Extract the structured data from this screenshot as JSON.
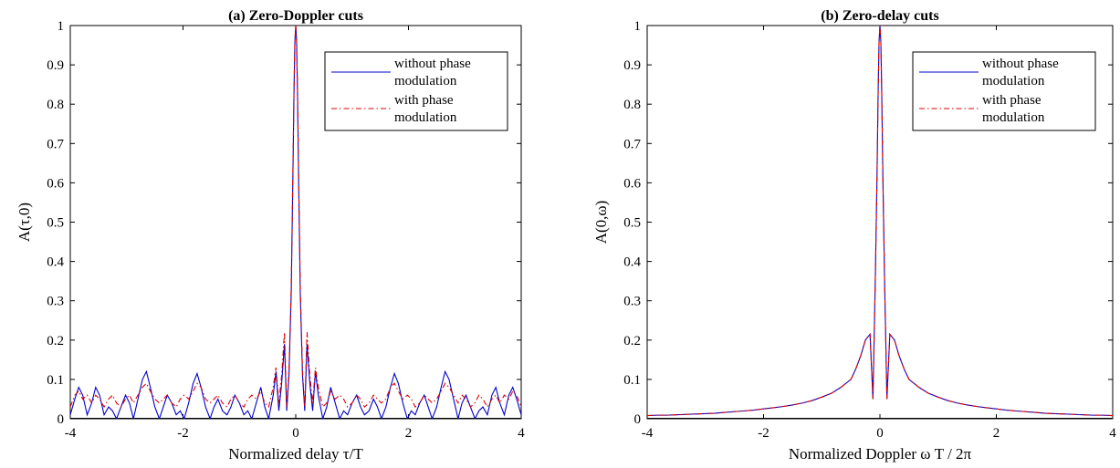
{
  "colors": {
    "without": "#0000cc",
    "with": "#dd0000"
  },
  "chart_data": [
    {
      "type": "line",
      "title": "(a) Zero-Doppler cuts",
      "xlabel": "Normalized delay τ/T",
      "ylabel": "A(τ,0)",
      "xlim": [
        -4,
        4
      ],
      "ylim": [
        0,
        1
      ],
      "xticks": [
        "-4",
        "-2",
        "0",
        "2",
        "4"
      ],
      "yticks": [
        "0",
        "0.1",
        "0.2",
        "0.3",
        "0.4",
        "0.5",
        "0.6",
        "0.7",
        "0.8",
        "0.9",
        "1"
      ],
      "grid": false,
      "legend_position": "top-right",
      "series": [
        {
          "name_lines": [
            "without phase",
            "modulation"
          ],
          "style": "solid",
          "color": "#0000cc",
          "x": [
            -4.0,
            -3.92,
            -3.85,
            -3.78,
            -3.7,
            -3.62,
            -3.55,
            -3.48,
            -3.4,
            -3.32,
            -3.25,
            -3.18,
            -3.1,
            -3.02,
            -2.95,
            -2.88,
            -2.8,
            -2.72,
            -2.65,
            -2.58,
            -2.5,
            -2.42,
            -2.35,
            -2.28,
            -2.2,
            -2.12,
            -2.05,
            -1.98,
            -1.9,
            -1.82,
            -1.75,
            -1.68,
            -1.6,
            -1.52,
            -1.45,
            -1.38,
            -1.3,
            -1.22,
            -1.15,
            -1.08,
            -1.0,
            -0.92,
            -0.85,
            -0.78,
            -0.7,
            -0.62,
            -0.55,
            -0.48,
            -0.4,
            -0.35,
            -0.3,
            -0.25,
            -0.2,
            -0.16,
            -0.12,
            -0.08,
            -0.05,
            -0.03,
            -0.015,
            0.0,
            0.015,
            0.03,
            0.05,
            0.08,
            0.12,
            0.16,
            0.2,
            0.25,
            0.3,
            0.35,
            0.4,
            0.48,
            0.55,
            0.62,
            0.7,
            0.78,
            0.85,
            0.92,
            1.0,
            1.08,
            1.15,
            1.22,
            1.3,
            1.38,
            1.45,
            1.52,
            1.6,
            1.68,
            1.75,
            1.82,
            1.9,
            1.98,
            2.05,
            2.12,
            2.2,
            2.28,
            2.35,
            2.42,
            2.5,
            2.58,
            2.65,
            2.72,
            2.8,
            2.88,
            2.95,
            3.02,
            3.1,
            3.18,
            3.25,
            3.32,
            3.4,
            3.48,
            3.55,
            3.62,
            3.7,
            3.78,
            3.85,
            3.92,
            4.0
          ],
          "y": [
            0.01,
            0.05,
            0.08,
            0.06,
            0.01,
            0.04,
            0.08,
            0.06,
            0.01,
            0.03,
            0.02,
            0.0,
            0.03,
            0.06,
            0.04,
            0.0,
            0.05,
            0.1,
            0.12,
            0.08,
            0.03,
            0.0,
            0.03,
            0.06,
            0.04,
            0.01,
            0.02,
            0.0,
            0.04,
            0.09,
            0.115,
            0.08,
            0.03,
            0.0,
            0.03,
            0.05,
            0.02,
            0.01,
            0.03,
            0.06,
            0.04,
            0.01,
            0.02,
            0.0,
            0.04,
            0.08,
            0.03,
            0.0,
            0.06,
            0.12,
            0.02,
            0.09,
            0.19,
            0.02,
            0.11,
            0.32,
            0.62,
            0.84,
            0.96,
            1.0,
            0.96,
            0.84,
            0.62,
            0.32,
            0.11,
            0.02,
            0.19,
            0.09,
            0.02,
            0.12,
            0.06,
            0.0,
            0.03,
            0.08,
            0.04,
            0.0,
            0.02,
            0.01,
            0.04,
            0.06,
            0.03,
            0.01,
            0.02,
            0.05,
            0.03,
            0.0,
            0.03,
            0.08,
            0.115,
            0.09,
            0.04,
            0.0,
            0.02,
            0.01,
            0.04,
            0.06,
            0.03,
            0.0,
            0.03,
            0.08,
            0.12,
            0.1,
            0.05,
            0.0,
            0.04,
            0.06,
            0.03,
            0.0,
            0.02,
            0.03,
            0.01,
            0.06,
            0.08,
            0.04,
            0.01,
            0.06,
            0.08,
            0.05,
            0.01
          ]
        },
        {
          "name_lines": [
            "with phase",
            "modulation"
          ],
          "style": "dashdot",
          "color": "#dd0000",
          "x": [
            -4.0,
            -3.92,
            -3.85,
            -3.78,
            -3.7,
            -3.62,
            -3.55,
            -3.48,
            -3.4,
            -3.32,
            -3.25,
            -3.18,
            -3.1,
            -3.02,
            -2.95,
            -2.88,
            -2.8,
            -2.72,
            -2.65,
            -2.58,
            -2.5,
            -2.42,
            -2.35,
            -2.28,
            -2.2,
            -2.12,
            -2.05,
            -1.98,
            -1.9,
            -1.82,
            -1.75,
            -1.68,
            -1.6,
            -1.52,
            -1.45,
            -1.38,
            -1.3,
            -1.22,
            -1.15,
            -1.08,
            -1.0,
            -0.92,
            -0.85,
            -0.78,
            -0.7,
            -0.62,
            -0.55,
            -0.48,
            -0.4,
            -0.35,
            -0.3,
            -0.25,
            -0.2,
            -0.16,
            -0.12,
            -0.08,
            -0.05,
            -0.03,
            -0.015,
            0.0,
            0.015,
            0.03,
            0.05,
            0.08,
            0.12,
            0.16,
            0.2,
            0.25,
            0.3,
            0.35,
            0.4,
            0.48,
            0.55,
            0.62,
            0.7,
            0.78,
            0.85,
            0.92,
            1.0,
            1.08,
            1.15,
            1.22,
            1.3,
            1.38,
            1.45,
            1.52,
            1.6,
            1.68,
            1.75,
            1.82,
            1.9,
            1.98,
            2.05,
            2.12,
            2.2,
            2.28,
            2.35,
            2.42,
            2.5,
            2.58,
            2.65,
            2.72,
            2.8,
            2.88,
            2.95,
            3.02,
            3.1,
            3.18,
            3.25,
            3.32,
            3.4,
            3.48,
            3.55,
            3.62,
            3.7,
            3.78,
            3.85,
            3.92,
            4.0
          ],
          "y": [
            0.03,
            0.06,
            0.07,
            0.05,
            0.06,
            0.04,
            0.06,
            0.05,
            0.03,
            0.05,
            0.06,
            0.04,
            0.03,
            0.05,
            0.06,
            0.04,
            0.06,
            0.08,
            0.09,
            0.07,
            0.05,
            0.04,
            0.05,
            0.06,
            0.04,
            0.03,
            0.05,
            0.06,
            0.05,
            0.07,
            0.09,
            0.08,
            0.05,
            0.04,
            0.05,
            0.06,
            0.04,
            0.03,
            0.05,
            0.06,
            0.04,
            0.03,
            0.05,
            0.06,
            0.05,
            0.07,
            0.04,
            0.03,
            0.08,
            0.13,
            0.04,
            0.11,
            0.22,
            0.03,
            0.12,
            0.34,
            0.64,
            0.85,
            0.96,
            1.0,
            0.96,
            0.85,
            0.64,
            0.34,
            0.12,
            0.03,
            0.22,
            0.11,
            0.04,
            0.13,
            0.08,
            0.03,
            0.04,
            0.07,
            0.05,
            0.06,
            0.05,
            0.03,
            0.04,
            0.06,
            0.05,
            0.03,
            0.04,
            0.06,
            0.05,
            0.04,
            0.05,
            0.08,
            0.09,
            0.07,
            0.05,
            0.06,
            0.05,
            0.03,
            0.04,
            0.06,
            0.05,
            0.04,
            0.05,
            0.07,
            0.09,
            0.08,
            0.06,
            0.04,
            0.06,
            0.05,
            0.03,
            0.04,
            0.06,
            0.05,
            0.03,
            0.05,
            0.06,
            0.04,
            0.06,
            0.05,
            0.07,
            0.06,
            0.03
          ]
        }
      ]
    },
    {
      "type": "line",
      "title": "(b) Zero-delay cuts",
      "xlabel": "Normalized Doppler ω T / 2π",
      "ylabel": "A(0,ω)",
      "xlim": [
        -4,
        4
      ],
      "ylim": [
        0,
        1
      ],
      "xticks": [
        "-4",
        "-2",
        "0",
        "2",
        "4"
      ],
      "yticks": [
        "0",
        "0.1",
        "0.2",
        "0.3",
        "0.4",
        "0.5",
        "0.6",
        "0.7",
        "0.8",
        "0.9",
        "1"
      ],
      "grid": false,
      "legend_position": "top-right",
      "series": [
        {
          "name_lines": [
            "without phase",
            "modulation"
          ],
          "style": "solid",
          "color": "#0000cc",
          "x": [
            -4.0,
            -3.83,
            -3.67,
            -3.5,
            -3.33,
            -3.17,
            -3.0,
            -2.83,
            -2.67,
            -2.5,
            -2.33,
            -2.17,
            -2.0,
            -1.83,
            -1.67,
            -1.5,
            -1.33,
            -1.17,
            -1.0,
            -0.83,
            -0.67,
            -0.5,
            -0.42,
            -0.33,
            -0.25,
            -0.17,
            -0.12,
            -0.08,
            -0.05,
            -0.03,
            -0.015,
            0.0,
            0.015,
            0.03,
            0.05,
            0.08,
            0.12,
            0.17,
            0.25,
            0.33,
            0.42,
            0.5,
            0.67,
            0.83,
            1.0,
            1.17,
            1.33,
            1.5,
            1.67,
            1.83,
            2.0,
            2.17,
            2.33,
            2.5,
            2.67,
            2.83,
            3.0,
            3.17,
            3.33,
            3.5,
            3.67,
            3.83,
            4.0
          ],
          "y": [
            0.008,
            0.009,
            0.009,
            0.01,
            0.011,
            0.012,
            0.013,
            0.014,
            0.016,
            0.018,
            0.02,
            0.022,
            0.025,
            0.028,
            0.031,
            0.035,
            0.04,
            0.046,
            0.055,
            0.065,
            0.08,
            0.1,
            0.125,
            0.16,
            0.2,
            0.215,
            0.05,
            0.35,
            0.62,
            0.84,
            0.96,
            1.0,
            0.96,
            0.84,
            0.62,
            0.35,
            0.05,
            0.215,
            0.2,
            0.16,
            0.125,
            0.1,
            0.08,
            0.065,
            0.055,
            0.046,
            0.04,
            0.035,
            0.031,
            0.028,
            0.025,
            0.022,
            0.02,
            0.018,
            0.016,
            0.014,
            0.013,
            0.012,
            0.011,
            0.01,
            0.009,
            0.009,
            0.008
          ]
        },
        {
          "name_lines": [
            "with phase",
            "modulation"
          ],
          "style": "dashdot",
          "color": "#dd0000",
          "x": [
            -4.0,
            -3.83,
            -3.67,
            -3.5,
            -3.33,
            -3.17,
            -3.0,
            -2.83,
            -2.67,
            -2.5,
            -2.33,
            -2.17,
            -2.0,
            -1.83,
            -1.67,
            -1.5,
            -1.33,
            -1.17,
            -1.0,
            -0.83,
            -0.67,
            -0.5,
            -0.42,
            -0.33,
            -0.25,
            -0.17,
            -0.12,
            -0.08,
            -0.05,
            -0.03,
            -0.015,
            0.0,
            0.015,
            0.03,
            0.05,
            0.08,
            0.12,
            0.17,
            0.25,
            0.33,
            0.42,
            0.5,
            0.67,
            0.83,
            1.0,
            1.17,
            1.33,
            1.5,
            1.67,
            1.83,
            2.0,
            2.17,
            2.33,
            2.5,
            2.67,
            2.83,
            3.0,
            3.17,
            3.33,
            3.5,
            3.67,
            3.83,
            4.0
          ],
          "y": [
            0.008,
            0.009,
            0.009,
            0.01,
            0.011,
            0.012,
            0.013,
            0.014,
            0.016,
            0.018,
            0.02,
            0.022,
            0.025,
            0.028,
            0.031,
            0.035,
            0.04,
            0.046,
            0.055,
            0.065,
            0.08,
            0.1,
            0.125,
            0.16,
            0.2,
            0.215,
            0.05,
            0.35,
            0.62,
            0.84,
            0.96,
            1.0,
            0.96,
            0.84,
            0.62,
            0.35,
            0.05,
            0.215,
            0.2,
            0.16,
            0.125,
            0.1,
            0.08,
            0.065,
            0.055,
            0.046,
            0.04,
            0.035,
            0.031,
            0.028,
            0.025,
            0.022,
            0.02,
            0.018,
            0.016,
            0.014,
            0.013,
            0.012,
            0.011,
            0.01,
            0.009,
            0.009,
            0.008
          ]
        }
      ]
    }
  ]
}
